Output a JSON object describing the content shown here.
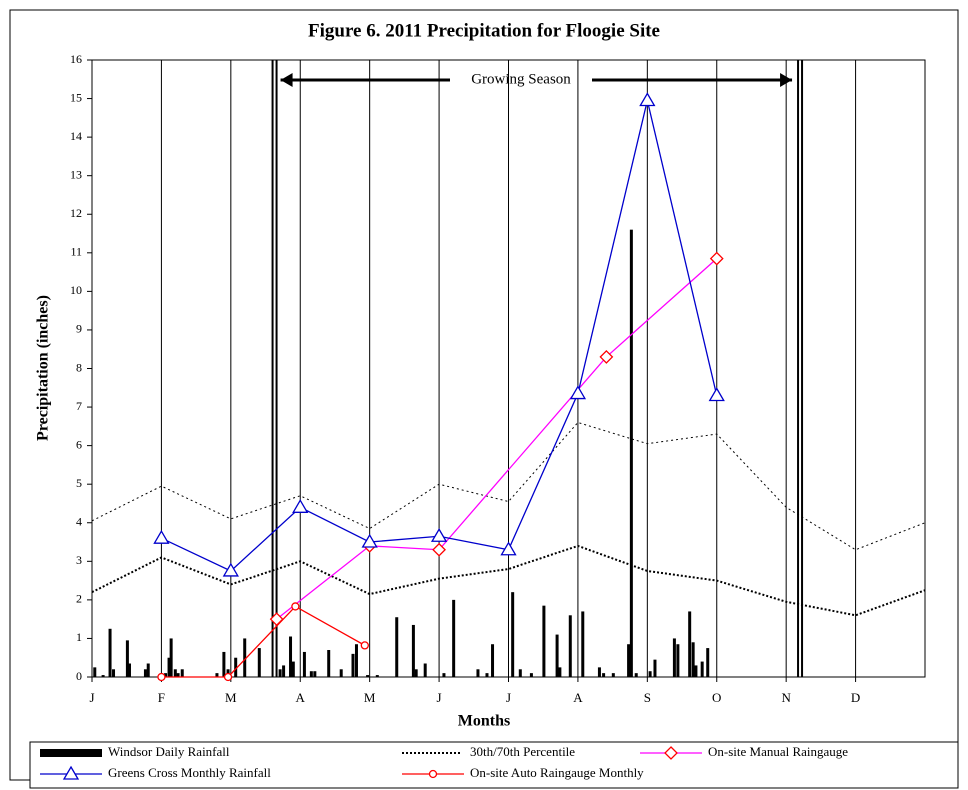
{
  "chart_data": {
    "type": "line",
    "title": "Figure 6.  2011 Precipitation for Floogie Site",
    "x_label": "Months",
    "y_label": "Precipitation (inches)",
    "xlim": [
      0,
      12
    ],
    "xticks": [
      {
        "value": 0,
        "label": "J"
      },
      {
        "value": 1,
        "label": "F"
      },
      {
        "value": 2,
        "label": "M"
      },
      {
        "value": 3,
        "label": "A"
      },
      {
        "value": 4,
        "label": "M"
      },
      {
        "value": 5,
        "label": "J"
      },
      {
        "value": 6,
        "label": "J"
      },
      {
        "value": 7,
        "label": "A"
      },
      {
        "value": 8,
        "label": "S"
      },
      {
        "value": 9,
        "label": "O"
      },
      {
        "value": 10,
        "label": "N"
      },
      {
        "value": 11,
        "label": "D"
      }
    ],
    "ylim": [
      0,
      16
    ],
    "yticks": [
      0,
      1,
      2,
      3,
      4,
      5,
      6,
      7,
      8,
      9,
      10,
      11,
      12,
      13,
      14,
      15,
      16
    ],
    "grid": "x",
    "growing_season": {
      "label": "Growing Season",
      "x": [
        2.63,
        10.2
      ]
    },
    "daily": {
      "name": "Windsor Daily Rainfall",
      "color": "#000000",
      "x": [
        0.04,
        0.16,
        0.26,
        0.31,
        0.51,
        0.54,
        0.77,
        0.81,
        1.06,
        1.11,
        1.14,
        1.2,
        1.24,
        1.3,
        1.8,
        1.9,
        1.96,
        2.07,
        2.2,
        2.41,
        2.71,
        2.76,
        2.86,
        2.9,
        3.06,
        3.16,
        3.21,
        3.41,
        3.59,
        3.76,
        3.81,
        3.97,
        4.11,
        4.39,
        4.63,
        4.67,
        4.8,
        5.07,
        5.21,
        5.56,
        5.69,
        5.77,
        6.06,
        6.17,
        6.33,
        6.51,
        6.7,
        6.74,
        6.89,
        7.07,
        7.31,
        7.37,
        7.51,
        7.73,
        7.77,
        7.84,
        8.04,
        8.11,
        8.39,
        8.44,
        8.61,
        8.66,
        8.7,
        8.79,
        8.87
      ],
      "values": [
        0.25,
        0.05,
        1.25,
        0.2,
        0.95,
        0.35,
        0.2,
        0.35,
        0.1,
        0.5,
        1.0,
        0.2,
        0.1,
        0.2,
        0.1,
        0.65,
        0.2,
        0.5,
        1.0,
        0.75,
        0.2,
        0.3,
        1.05,
        0.4,
        0.65,
        0.15,
        0.15,
        0.7,
        0.2,
        0.6,
        0.85,
        0.05,
        0.05,
        1.55,
        1.35,
        0.2,
        0.35,
        0.1,
        2.0,
        0.2,
        0.1,
        0.85,
        2.2,
        0.2,
        0.1,
        1.85,
        1.1,
        0.25,
        1.6,
        1.7,
        0.25,
        0.1,
        0.1,
        0.85,
        11.6,
        0.1,
        0.15,
        0.45,
        1.0,
        0.85,
        1.7,
        0.9,
        0.3,
        0.4,
        0.75
      ]
    },
    "percentile": {
      "name": "30th/70th Percentile",
      "color": "#000000",
      "x": [
        0,
        1,
        2,
        3,
        4,
        5,
        6,
        7,
        8,
        9,
        10,
        11,
        12
      ],
      "p30": [
        2.2,
        3.1,
        2.4,
        3.0,
        2.15,
        2.55,
        2.8,
        3.4,
        2.75,
        2.5,
        1.95,
        1.6,
        2.25
      ],
      "p70": [
        4.05,
        4.95,
        4.1,
        4.7,
        3.85,
        5.0,
        4.55,
        6.6,
        6.05,
        6.3,
        4.4,
        3.3,
        4.0
      ]
    },
    "series": [
      {
        "name": "On-site Manual Raingauge",
        "color": "#ff00ff",
        "marker_color": "#ff0000",
        "marker": "diamond",
        "x": [
          2.66,
          4,
          5,
          7.41,
          9
        ],
        "values": [
          1.5,
          3.4,
          3.3,
          8.3,
          10.85
        ]
      },
      {
        "name": "Greens Cross Monthly Rainfall",
        "color": "#0000cc",
        "marker_color": "#0000cc",
        "marker": "triangle",
        "x": [
          1,
          2,
          3,
          4,
          5,
          6,
          7,
          8,
          9
        ],
        "values": [
          3.6,
          2.75,
          4.4,
          3.5,
          3.65,
          3.3,
          7.35,
          14.95,
          7.3
        ]
      },
      {
        "name": "On-site Auto Raingauge Monthly",
        "color": "#ff0000",
        "marker_color": "#ff0000",
        "marker": "circle",
        "x": [
          1,
          1.96,
          2.93,
          3.93
        ],
        "values": [
          0,
          0,
          1.83,
          0.82
        ]
      }
    ]
  }
}
